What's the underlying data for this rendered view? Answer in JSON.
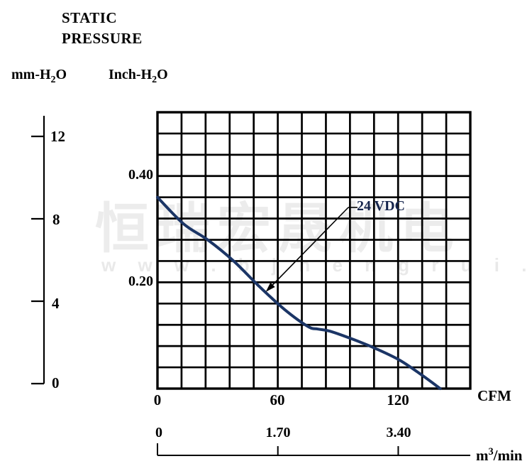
{
  "header": {
    "line1": "STATIC",
    "line2": "PRESSURE"
  },
  "units": {
    "mm": {
      "pre": "mm-H",
      "sub": "2",
      "post": "O"
    },
    "inch": {
      "pre": "Inch-H",
      "sub": "2",
      "post": "O"
    }
  },
  "axes": {
    "mm_ticks": [
      "12",
      "8",
      "4",
      "0"
    ],
    "inch_ticks": [
      "0.40",
      "0.20"
    ],
    "cfm_ticks": [
      "0",
      "60",
      "120"
    ],
    "cfm_label": "CFM",
    "m3_ticks": [
      "0",
      "1.70",
      "3.40"
    ],
    "m3_label": {
      "pre": "m",
      "sup": "3",
      "post": "/min"
    }
  },
  "annotation": {
    "label": "24 VDC"
  },
  "watermark": {
    "cjk": "恒瑞宏晟机电",
    "url": "w w w . b j h e n g r u i . c n"
  },
  "colors": {
    "curve": "#1b3566",
    "grid": "#000000",
    "annotation_text": "#16254d",
    "watermark_cjk": "#ececec",
    "watermark_url": "#e9e9e9"
  },
  "chart_data": {
    "type": "line",
    "title": "STATIC PRESSURE",
    "x_axis": {
      "label": "CFM",
      "ticks": [
        0,
        60,
        120
      ],
      "range": [
        0,
        156
      ],
      "cells": 13,
      "cfm_per_cell": 12
    },
    "x_axis_secondary": {
      "label": "m3/min",
      "ticks": [
        0,
        1.7,
        3.4
      ],
      "cfm_per_m3min": 35.315
    },
    "y_axis_inch": {
      "label": "Inch-H2O",
      "ticks": [
        0.4,
        0.2
      ],
      "range": [
        0,
        0.52
      ],
      "cells": 13,
      "inch_per_cell": 0.04
    },
    "y_axis_mm": {
      "label": "mm-H2O",
      "ticks": [
        12,
        8,
        4,
        0
      ],
      "range": [
        0,
        13
      ]
    },
    "grid": "on",
    "legend": "arrow annotation inside plot",
    "series": [
      {
        "name": "24 VDC",
        "points_cfm_inchH2O": [
          [
            0,
            0.36
          ],
          [
            13,
            0.31
          ],
          [
            25,
            0.28
          ],
          [
            38,
            0.24
          ],
          [
            50,
            0.195
          ],
          [
            63,
            0.15
          ],
          [
            75,
            0.117
          ],
          [
            80,
            0.112
          ],
          [
            86,
            0.108
          ],
          [
            98,
            0.092
          ],
          [
            109,
            0.075
          ],
          [
            121,
            0.053
          ],
          [
            132,
            0.025
          ],
          [
            141,
            0
          ]
        ]
      }
    ],
    "annotation": {
      "label": "24 VDC",
      "arrow_tip_cfm_inch": [
        54,
        0.182
      ]
    }
  }
}
